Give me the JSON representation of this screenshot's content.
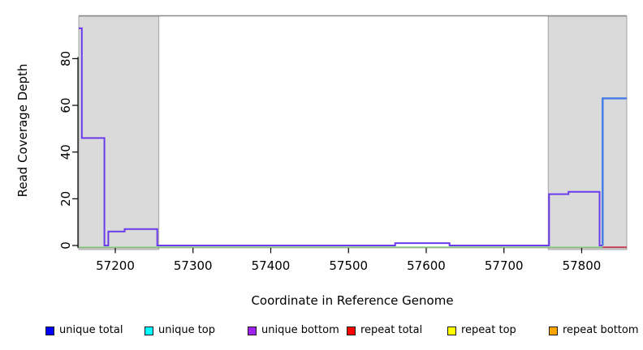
{
  "chart_data": {
    "type": "line",
    "title": "",
    "xlabel": "Coordinate in Reference Genome",
    "ylabel": "Read Coverage Depth",
    "xlim": [
      57153,
      57858
    ],
    "ylim": [
      0,
      98.35
    ],
    "x_ticks": [
      57200,
      57300,
      57400,
      57500,
      57600,
      57700,
      57800
    ],
    "y_ticks": [
      0,
      20,
      40,
      60,
      80
    ],
    "grid": false,
    "legend_position": "bottom",
    "top_border_depth": 98.35,
    "shaded_regions": [
      {
        "x0": 57153,
        "x1": 57256,
        "fill": "#DADADA",
        "stroke": "#A3A3A3"
      },
      {
        "x0": 57757,
        "x1": 57858,
        "fill": "#DADADA",
        "stroke": "#A3A3A3"
      }
    ],
    "series": [
      {
        "name": "zero baseline (green)",
        "color": "#9CD796",
        "width": 1.7,
        "dy": 2,
        "points": [
          [
            57153,
            0
          ],
          [
            57827,
            0
          ]
        ]
      },
      {
        "name": "repeat total zero segment (red)",
        "color": "#D94A66",
        "width": 1.7,
        "dy": 2,
        "points": [
          [
            57827,
            0
          ],
          [
            57858,
            0
          ]
        ]
      },
      {
        "name": "unique bottom",
        "color": "#6A3AEC",
        "width": 2,
        "dy": 0,
        "points": [
          [
            57153,
            93
          ],
          [
            57157,
            93
          ],
          [
            57157,
            46
          ],
          [
            57186,
            46
          ],
          [
            57186,
            0
          ],
          [
            57191,
            0
          ],
          [
            57191,
            6
          ],
          [
            57212,
            6
          ],
          [
            57212,
            7
          ],
          [
            57254,
            7
          ],
          [
            57254,
            0
          ],
          [
            57560,
            0
          ],
          [
            57560,
            1
          ],
          [
            57630,
            1
          ],
          [
            57630,
            0
          ],
          [
            57758,
            0
          ],
          [
            57758,
            22
          ],
          [
            57783,
            22
          ],
          [
            57783,
            23
          ],
          [
            57823,
            23
          ],
          [
            57823,
            0
          ],
          [
            57827,
            0
          ]
        ]
      },
      {
        "name": "unique total",
        "color": "#4379E8",
        "width": 2.4,
        "dy": 0,
        "points": [
          [
            57827,
            0
          ],
          [
            57827,
            63
          ],
          [
            57858,
            63
          ]
        ]
      }
    ]
  },
  "legend": {
    "items": [
      {
        "label": "unique total",
        "color": "#0000FF"
      },
      {
        "label": "unique top",
        "color": "#00FFFF"
      },
      {
        "label": "unique bottom",
        "color": "#A020F0"
      },
      {
        "label": "repeat total",
        "color": "#FF0000"
      },
      {
        "label": "repeat top",
        "color": "#FFFF00"
      },
      {
        "label": "repeat bottom",
        "color": "#FFA500"
      }
    ]
  }
}
